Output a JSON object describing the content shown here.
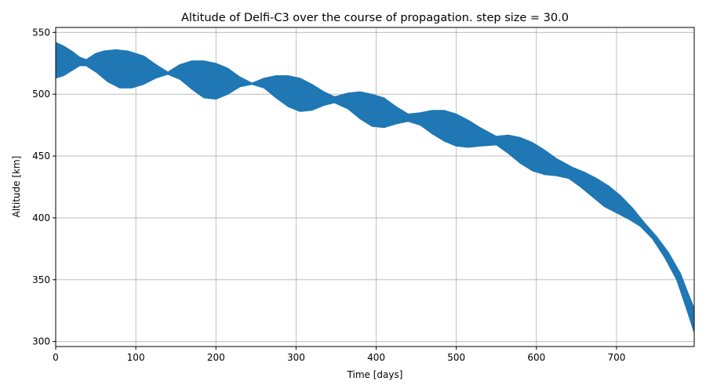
{
  "chart_data": {
    "type": "area",
    "title": "Altitude of Delfi-C3 over the course of propagation. step size = 30.0",
    "xlabel": "Time [days]",
    "ylabel": "Altitude [km]",
    "xlim": [
      0,
      797
    ],
    "ylim": [
      296,
      554
    ],
    "grid": true,
    "xticks": [
      0,
      100,
      200,
      300,
      400,
      500,
      600,
      700
    ],
    "yticks": [
      300,
      350,
      400,
      450,
      500,
      550
    ],
    "series": [
      {
        "color": "#1f77b4",
        "upper": [
          [
            0,
            542
          ],
          [
            10,
            539
          ],
          [
            20,
            535
          ],
          [
            30,
            530
          ],
          [
            38,
            528
          ],
          [
            50,
            533
          ],
          [
            60,
            535
          ],
          [
            75,
            536
          ],
          [
            90,
            535
          ],
          [
            110,
            531
          ],
          [
            125,
            524
          ],
          [
            140,
            518
          ],
          [
            155,
            524
          ],
          [
            170,
            527
          ],
          [
            185,
            527
          ],
          [
            200,
            525
          ],
          [
            215,
            521
          ],
          [
            230,
            514
          ],
          [
            245,
            509
          ],
          [
            260,
            513
          ],
          [
            275,
            515
          ],
          [
            290,
            515
          ],
          [
            305,
            513
          ],
          [
            320,
            508
          ],
          [
            335,
            502
          ],
          [
            348,
            498
          ],
          [
            365,
            501
          ],
          [
            380,
            502
          ],
          [
            395,
            500
          ],
          [
            410,
            497
          ],
          [
            425,
            490
          ],
          [
            440,
            484
          ],
          [
            455,
            485
          ],
          [
            470,
            487
          ],
          [
            485,
            487
          ],
          [
            500,
            484
          ],
          [
            515,
            479
          ],
          [
            530,
            473
          ],
          [
            550,
            466
          ],
          [
            565,
            467
          ],
          [
            580,
            465
          ],
          [
            595,
            461
          ],
          [
            610,
            455
          ],
          [
            625,
            448
          ],
          [
            645,
            441
          ],
          [
            660,
            437
          ],
          [
            675,
            432
          ],
          [
            690,
            426
          ],
          [
            705,
            418
          ],
          [
            720,
            408
          ],
          [
            735,
            396
          ],
          [
            750,
            385
          ],
          [
            765,
            372
          ],
          [
            780,
            355
          ],
          [
            790,
            338
          ],
          [
            797,
            327
          ]
        ],
        "lower": [
          [
            0,
            513
          ],
          [
            10,
            515
          ],
          [
            20,
            519
          ],
          [
            30,
            523
          ],
          [
            38,
            523
          ],
          [
            50,
            518
          ],
          [
            65,
            510
          ],
          [
            80,
            505
          ],
          [
            95,
            505
          ],
          [
            110,
            508
          ],
          [
            125,
            513
          ],
          [
            140,
            516
          ],
          [
            155,
            512
          ],
          [
            170,
            504
          ],
          [
            185,
            497
          ],
          [
            200,
            496
          ],
          [
            215,
            500
          ],
          [
            230,
            506
          ],
          [
            245,
            508
          ],
          [
            260,
            505
          ],
          [
            275,
            497
          ],
          [
            290,
            490
          ],
          [
            305,
            486
          ],
          [
            320,
            487
          ],
          [
            335,
            491
          ],
          [
            348,
            493
          ],
          [
            365,
            488
          ],
          [
            380,
            480
          ],
          [
            395,
            474
          ],
          [
            410,
            473
          ],
          [
            425,
            476
          ],
          [
            440,
            478
          ],
          [
            455,
            475
          ],
          [
            470,
            468
          ],
          [
            485,
            462
          ],
          [
            500,
            458
          ],
          [
            515,
            457
          ],
          [
            530,
            458
          ],
          [
            550,
            459
          ],
          [
            565,
            452
          ],
          [
            580,
            444
          ],
          [
            595,
            438
          ],
          [
            610,
            435
          ],
          [
            625,
            434
          ],
          [
            640,
            432
          ],
          [
            655,
            425
          ],
          [
            670,
            417
          ],
          [
            685,
            409
          ],
          [
            700,
            404
          ],
          [
            715,
            399
          ],
          [
            730,
            393
          ],
          [
            745,
            383
          ],
          [
            760,
            368
          ],
          [
            775,
            350
          ],
          [
            787,
            327
          ],
          [
            797,
            307
          ]
        ]
      }
    ]
  }
}
